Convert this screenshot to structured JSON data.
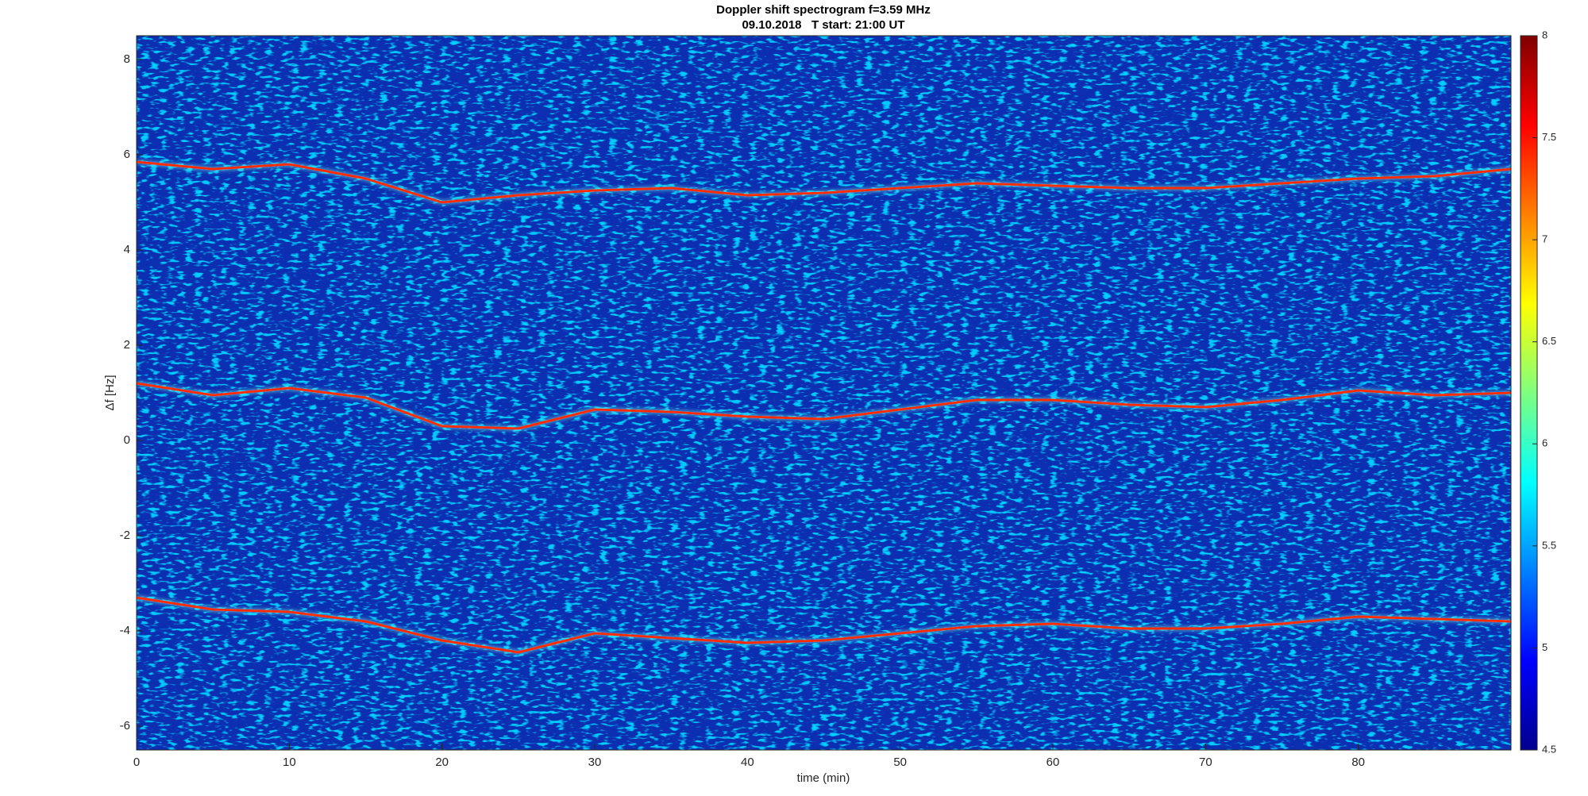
{
  "chart_data": {
    "type": "spectrogram",
    "title": "Doppler shift spectrogram f=3.59 MHz",
    "subtitle": "09.10.2018   T start: 21:00 UT",
    "x_label": "time (min)",
    "y_label": "Δf [Hz]",
    "x": [
      0,
      5,
      10,
      15,
      20,
      25,
      30,
      35,
      40,
      45,
      50,
      55,
      60,
      65,
      70,
      75,
      80,
      85,
      90
    ],
    "series": [
      {
        "color": "#ff2a00",
        "values": [
          5.85,
          5.7,
          5.8,
          5.5,
          5.0,
          5.15,
          5.25,
          5.3,
          5.15,
          5.2,
          5.3,
          5.4,
          5.35,
          5.3,
          5.3,
          5.4,
          5.5,
          5.55,
          5.7
        ]
      },
      {
        "color": "#ff2a00",
        "values": [
          1.2,
          0.95,
          1.1,
          0.9,
          0.3,
          0.25,
          0.65,
          0.6,
          0.5,
          0.45,
          0.65,
          0.85,
          0.85,
          0.75,
          0.7,
          0.85,
          1.05,
          0.95,
          1.0
        ]
      },
      {
        "color": "#ff2a00",
        "values": [
          -3.3,
          -3.55,
          -3.6,
          -3.8,
          -4.2,
          -4.45,
          -4.05,
          -4.15,
          -4.25,
          -4.2,
          -4.05,
          -3.9,
          -3.85,
          -3.95,
          -3.95,
          -3.85,
          -3.7,
          -3.75,
          -3.8
        ]
      }
    ],
    "xlim": [
      0,
      90
    ],
    "xticks": [
      0,
      10,
      20,
      30,
      40,
      50,
      60,
      70,
      80
    ],
    "ylim": [
      -6.5,
      8.5
    ],
    "yticks": [
      -6,
      -4,
      -2,
      0,
      2,
      4,
      6,
      8
    ],
    "background": "#0b2fb0",
    "colorbar": {
      "lim": [
        4.5,
        8
      ],
      "ticks": [
        4.5,
        5,
        5.5,
        6,
        6.5,
        7,
        7.5,
        8
      ],
      "colormap": "jet"
    }
  }
}
